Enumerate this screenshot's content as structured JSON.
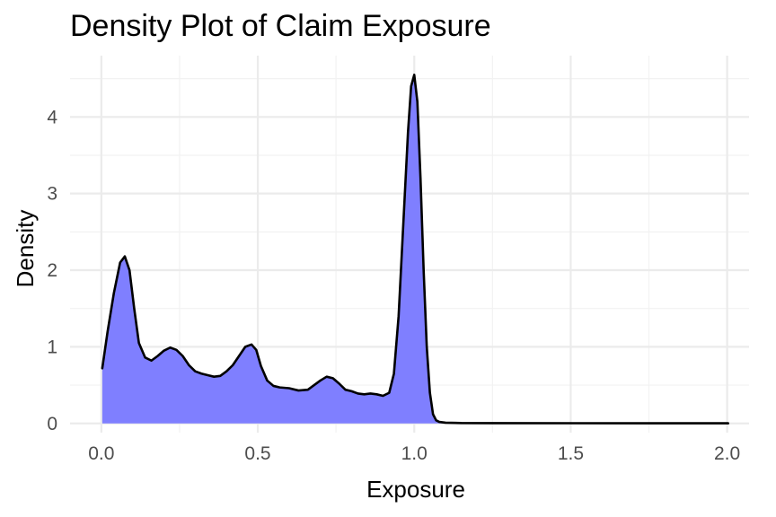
{
  "chart_data": {
    "type": "area",
    "title": "Density Plot of Claim Exposure",
    "xlabel": "Exposure",
    "ylabel": "Density",
    "xlim": [
      -0.1,
      2.07
    ],
    "ylim": [
      -0.12,
      4.8
    ],
    "x_ticks": [
      0.0,
      0.5,
      1.0,
      1.5,
      2.0
    ],
    "x_tick_labels": [
      "0.0",
      "0.5",
      "1.0",
      "1.5",
      "2.0"
    ],
    "y_ticks": [
      0,
      1,
      2,
      3,
      4
    ],
    "y_tick_labels": [
      "0",
      "1",
      "2",
      "3",
      "4"
    ],
    "grid": true,
    "fill_color": "#7f7fff",
    "line_color": "#000000",
    "series": [
      {
        "x": [
          0.003,
          0.02,
          0.04,
          0.06,
          0.075,
          0.09,
          0.105,
          0.12,
          0.14,
          0.16,
          0.18,
          0.2,
          0.22,
          0.24,
          0.26,
          0.28,
          0.3,
          0.32,
          0.34,
          0.36,
          0.38,
          0.4,
          0.42,
          0.44,
          0.46,
          0.48,
          0.495,
          0.51,
          0.53,
          0.55,
          0.57,
          0.6,
          0.63,
          0.66,
          0.68,
          0.7,
          0.72,
          0.74,
          0.76,
          0.78,
          0.8,
          0.82,
          0.84,
          0.86,
          0.88,
          0.9,
          0.92,
          0.935,
          0.95,
          0.965,
          0.98,
          0.99,
          1.0,
          1.01,
          1.02,
          1.03,
          1.04,
          1.05,
          1.06,
          1.07,
          1.08,
          1.1,
          1.15,
          1.25,
          1.5,
          1.75,
          2.003
        ],
        "y": [
          0.72,
          1.2,
          1.7,
          2.1,
          2.18,
          2.0,
          1.5,
          1.05,
          0.86,
          0.82,
          0.88,
          0.95,
          0.99,
          0.96,
          0.88,
          0.76,
          0.68,
          0.65,
          0.63,
          0.61,
          0.62,
          0.68,
          0.76,
          0.88,
          1.0,
          1.03,
          0.96,
          0.75,
          0.56,
          0.49,
          0.47,
          0.46,
          0.43,
          0.44,
          0.5,
          0.56,
          0.61,
          0.59,
          0.52,
          0.44,
          0.42,
          0.39,
          0.38,
          0.39,
          0.38,
          0.36,
          0.4,
          0.65,
          1.4,
          2.6,
          3.8,
          4.4,
          4.55,
          4.2,
          3.2,
          2.0,
          1.0,
          0.4,
          0.12,
          0.04,
          0.02,
          0.01,
          0.005,
          0.004,
          0.003,
          0.002,
          0.002
        ]
      }
    ]
  }
}
